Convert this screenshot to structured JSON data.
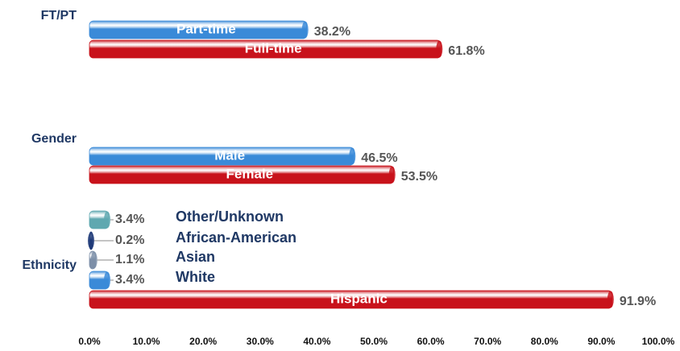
{
  "chart_data": {
    "type": "bar",
    "xlim": [
      0,
      100
    ],
    "xticks": [
      {
        "value": 0,
        "label": "0.0%"
      },
      {
        "value": 10,
        "label": "10.0%"
      },
      {
        "value": 20,
        "label": "20.0%"
      },
      {
        "value": 30,
        "label": "30.0%"
      },
      {
        "value": 40,
        "label": "40.0%"
      },
      {
        "value": 50,
        "label": "50.0%"
      },
      {
        "value": 60,
        "label": "60.0%"
      },
      {
        "value": 70,
        "label": "70.0%"
      },
      {
        "value": 80,
        "label": "80.0%"
      },
      {
        "value": 90,
        "label": "90.0%"
      },
      {
        "value": 100,
        "label": "100.0%"
      }
    ],
    "groups": [
      {
        "name": "FT/PT",
        "bars": [
          {
            "name": "Part-time",
            "value": 38.2,
            "value_label": "38.2%",
            "color": "#3a8ad8"
          },
          {
            "name": "Full-time",
            "value": 61.8,
            "value_label": "61.8%",
            "color": "#c8121b"
          }
        ]
      },
      {
        "name": "Gender",
        "bars": [
          {
            "name": "Male",
            "value": 46.5,
            "value_label": "46.5%",
            "color": "#3a8ad8"
          },
          {
            "name": "Female",
            "value": 53.5,
            "value_label": "53.5%",
            "color": "#c8121b"
          }
        ]
      },
      {
        "name": "Ethnicity",
        "bars": [
          {
            "name": "Other/Unknown",
            "value": 3.4,
            "value_label": "3.4%",
            "color": "#5fa8b0"
          },
          {
            "name": "African-American",
            "value": 0.2,
            "value_label": "0.2%",
            "color": "#1f3a78"
          },
          {
            "name": "Asian",
            "value": 1.1,
            "value_label": "1.1%",
            "color": "#7d8fa8"
          },
          {
            "name": "White",
            "value": 3.4,
            "value_label": "3.4%",
            "color": "#3a8ad8"
          },
          {
            "name": "Hispanic",
            "value": 91.9,
            "value_label": "91.9%",
            "color": "#c8121b"
          }
        ]
      }
    ]
  }
}
